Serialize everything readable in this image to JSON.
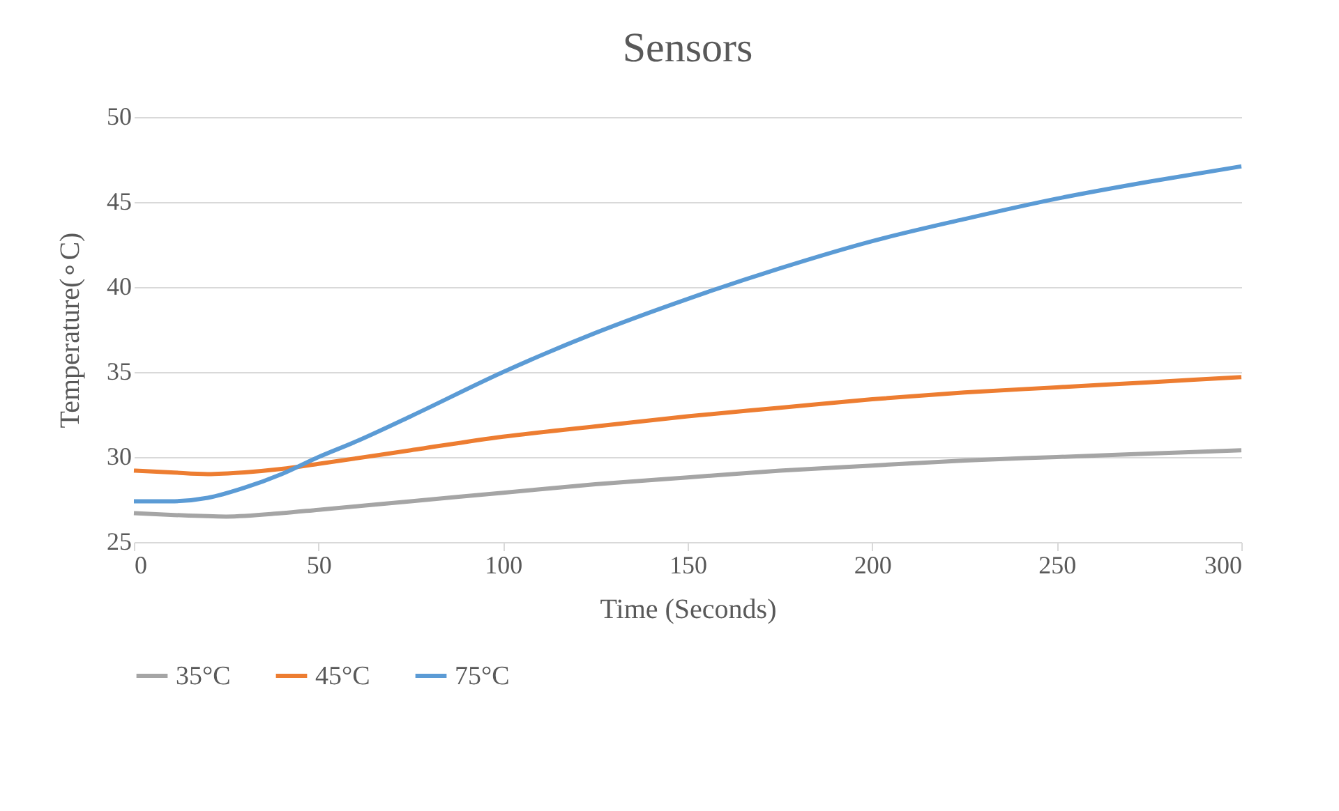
{
  "chart_data": {
    "type": "line",
    "title": "Sensors",
    "xlabel": "Time (Seconds)",
    "ylabel": "Temperature(∘C)",
    "xlim": [
      0,
      300
    ],
    "xticks": [
      0,
      50,
      100,
      150,
      200,
      250,
      300
    ],
    "ylim": [
      25,
      50
    ],
    "yticks": [
      25,
      30,
      35,
      40,
      45,
      50
    ],
    "grid": "y",
    "legend": "bottom",
    "marker": "none",
    "line_style": "solid",
    "series": [
      {
        "name": "35°C",
        "color": "#a5a5a5",
        "x": [
          0,
          10,
          25,
          40,
          50,
          75,
          100,
          125,
          150,
          175,
          200,
          225,
          250,
          275,
          300
        ],
        "values": [
          26.7,
          26.6,
          26.5,
          26.7,
          26.9,
          27.4,
          27.9,
          28.4,
          28.8,
          29.2,
          29.5,
          29.8,
          30.0,
          30.2,
          30.4
        ]
      },
      {
        "name": "45°C",
        "color": "#ed7d31",
        "x": [
          0,
          10,
          20,
          30,
          40,
          50,
          75,
          100,
          125,
          150,
          175,
          200,
          225,
          250,
          275,
          300
        ],
        "values": [
          29.2,
          29.1,
          29.0,
          29.1,
          29.3,
          29.6,
          30.4,
          31.2,
          31.8,
          32.4,
          32.9,
          33.4,
          33.8,
          34.1,
          34.4,
          34.7
        ]
      },
      {
        "name": "75°C",
        "color": "#5b9bd5",
        "x": [
          0,
          10,
          20,
          30,
          40,
          50,
          60,
          75,
          100,
          125,
          150,
          175,
          200,
          225,
          250,
          275,
          300
        ],
        "values": [
          27.4,
          27.4,
          27.6,
          28.2,
          29.0,
          30.0,
          30.9,
          32.4,
          35.0,
          37.3,
          39.3,
          41.1,
          42.7,
          44.0,
          45.2,
          46.2,
          47.1
        ]
      }
    ]
  }
}
